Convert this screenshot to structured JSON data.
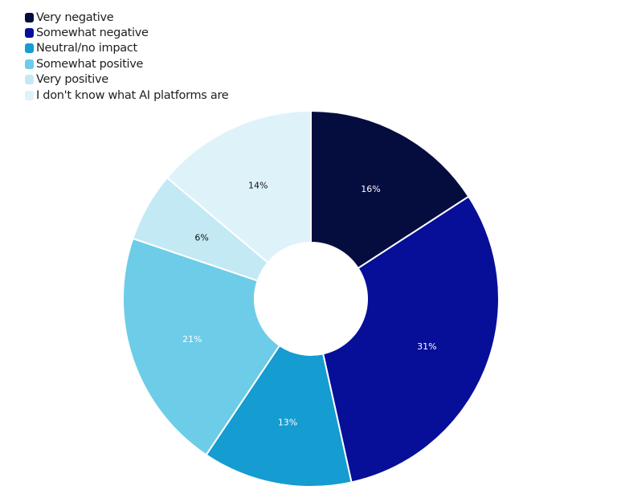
{
  "chart_data": {
    "type": "pie",
    "variant": "donut",
    "title": "",
    "legend_position": "top-left",
    "categories": [
      "Very negative",
      "Somewhat negative",
      "Neutral/no impact",
      "Somewhat positive",
      "Very positive",
      "I don't know what AI platforms are"
    ],
    "values": [
      16,
      31,
      13,
      21,
      6,
      14
    ],
    "labels": [
      "16%",
      "31%",
      "13%",
      "21%",
      "6%",
      "14%"
    ],
    "colors": [
      "#050d3f",
      "#070f98",
      "#159cd1",
      "#6dcce7",
      "#c3e9f4",
      "#def2fa"
    ],
    "label_colors": [
      "#ffffff",
      "#ffffff",
      "#ffffff",
      "#ffffff",
      "#111111",
      "#111111"
    ]
  },
  "legend": {
    "items": [
      {
        "label": "Very negative",
        "color": "#050d3f"
      },
      {
        "label": "Somewhat negative",
        "color": "#070f98"
      },
      {
        "label": "Neutral/no impact",
        "color": "#159cd1"
      },
      {
        "label": "Somewhat positive",
        "color": "#6dcce7"
      },
      {
        "label": "Very positive",
        "color": "#c3e9f4"
      },
      {
        "label": "I don't know what AI platforms are",
        "color": "#def2fa"
      }
    ]
  }
}
